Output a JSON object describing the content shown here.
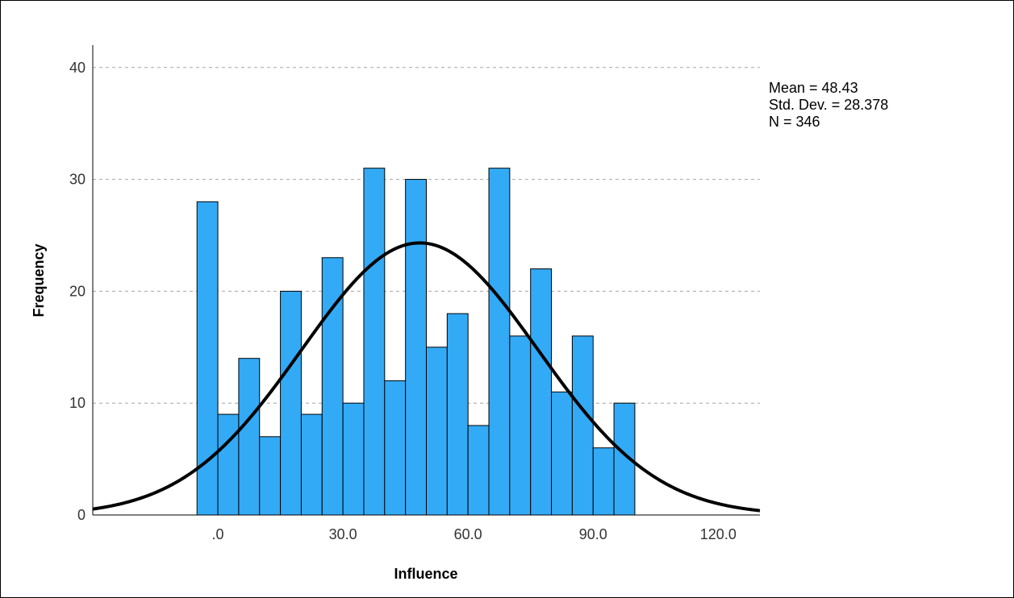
{
  "chart_data": {
    "type": "bar",
    "title": "",
    "xlabel": "Influence",
    "ylabel": "Frequency",
    "bin_start": -5,
    "bin_width": 5,
    "values": [
      28,
      9,
      14,
      7,
      20,
      9,
      23,
      10,
      31,
      12,
      30,
      15,
      18,
      8,
      31,
      16,
      22,
      11,
      16,
      6,
      10
    ],
    "xlim": [
      -30,
      130
    ],
    "ylim": [
      0,
      42
    ],
    "x_ticks": [
      0,
      30,
      60,
      90,
      120
    ],
    "x_tick_labels": [
      ".0",
      "30.0",
      "60.0",
      "90.0",
      "120.0"
    ],
    "y_ticks": [
      0,
      10,
      20,
      30,
      40
    ],
    "y_tick_labels": [
      "0",
      "10",
      "20",
      "30",
      "40"
    ],
    "grid": "horizontal dashed",
    "bar_color": "#33aaf6",
    "bar_edge_color": "#000000",
    "normal_curve": {
      "mean": 48.43,
      "sd": 28.378,
      "n": 346
    },
    "stats": [
      "Mean = 48.43",
      "Std. Dev. = 28.378",
      "N = 346"
    ],
    "stats_placement": "top-right"
  }
}
